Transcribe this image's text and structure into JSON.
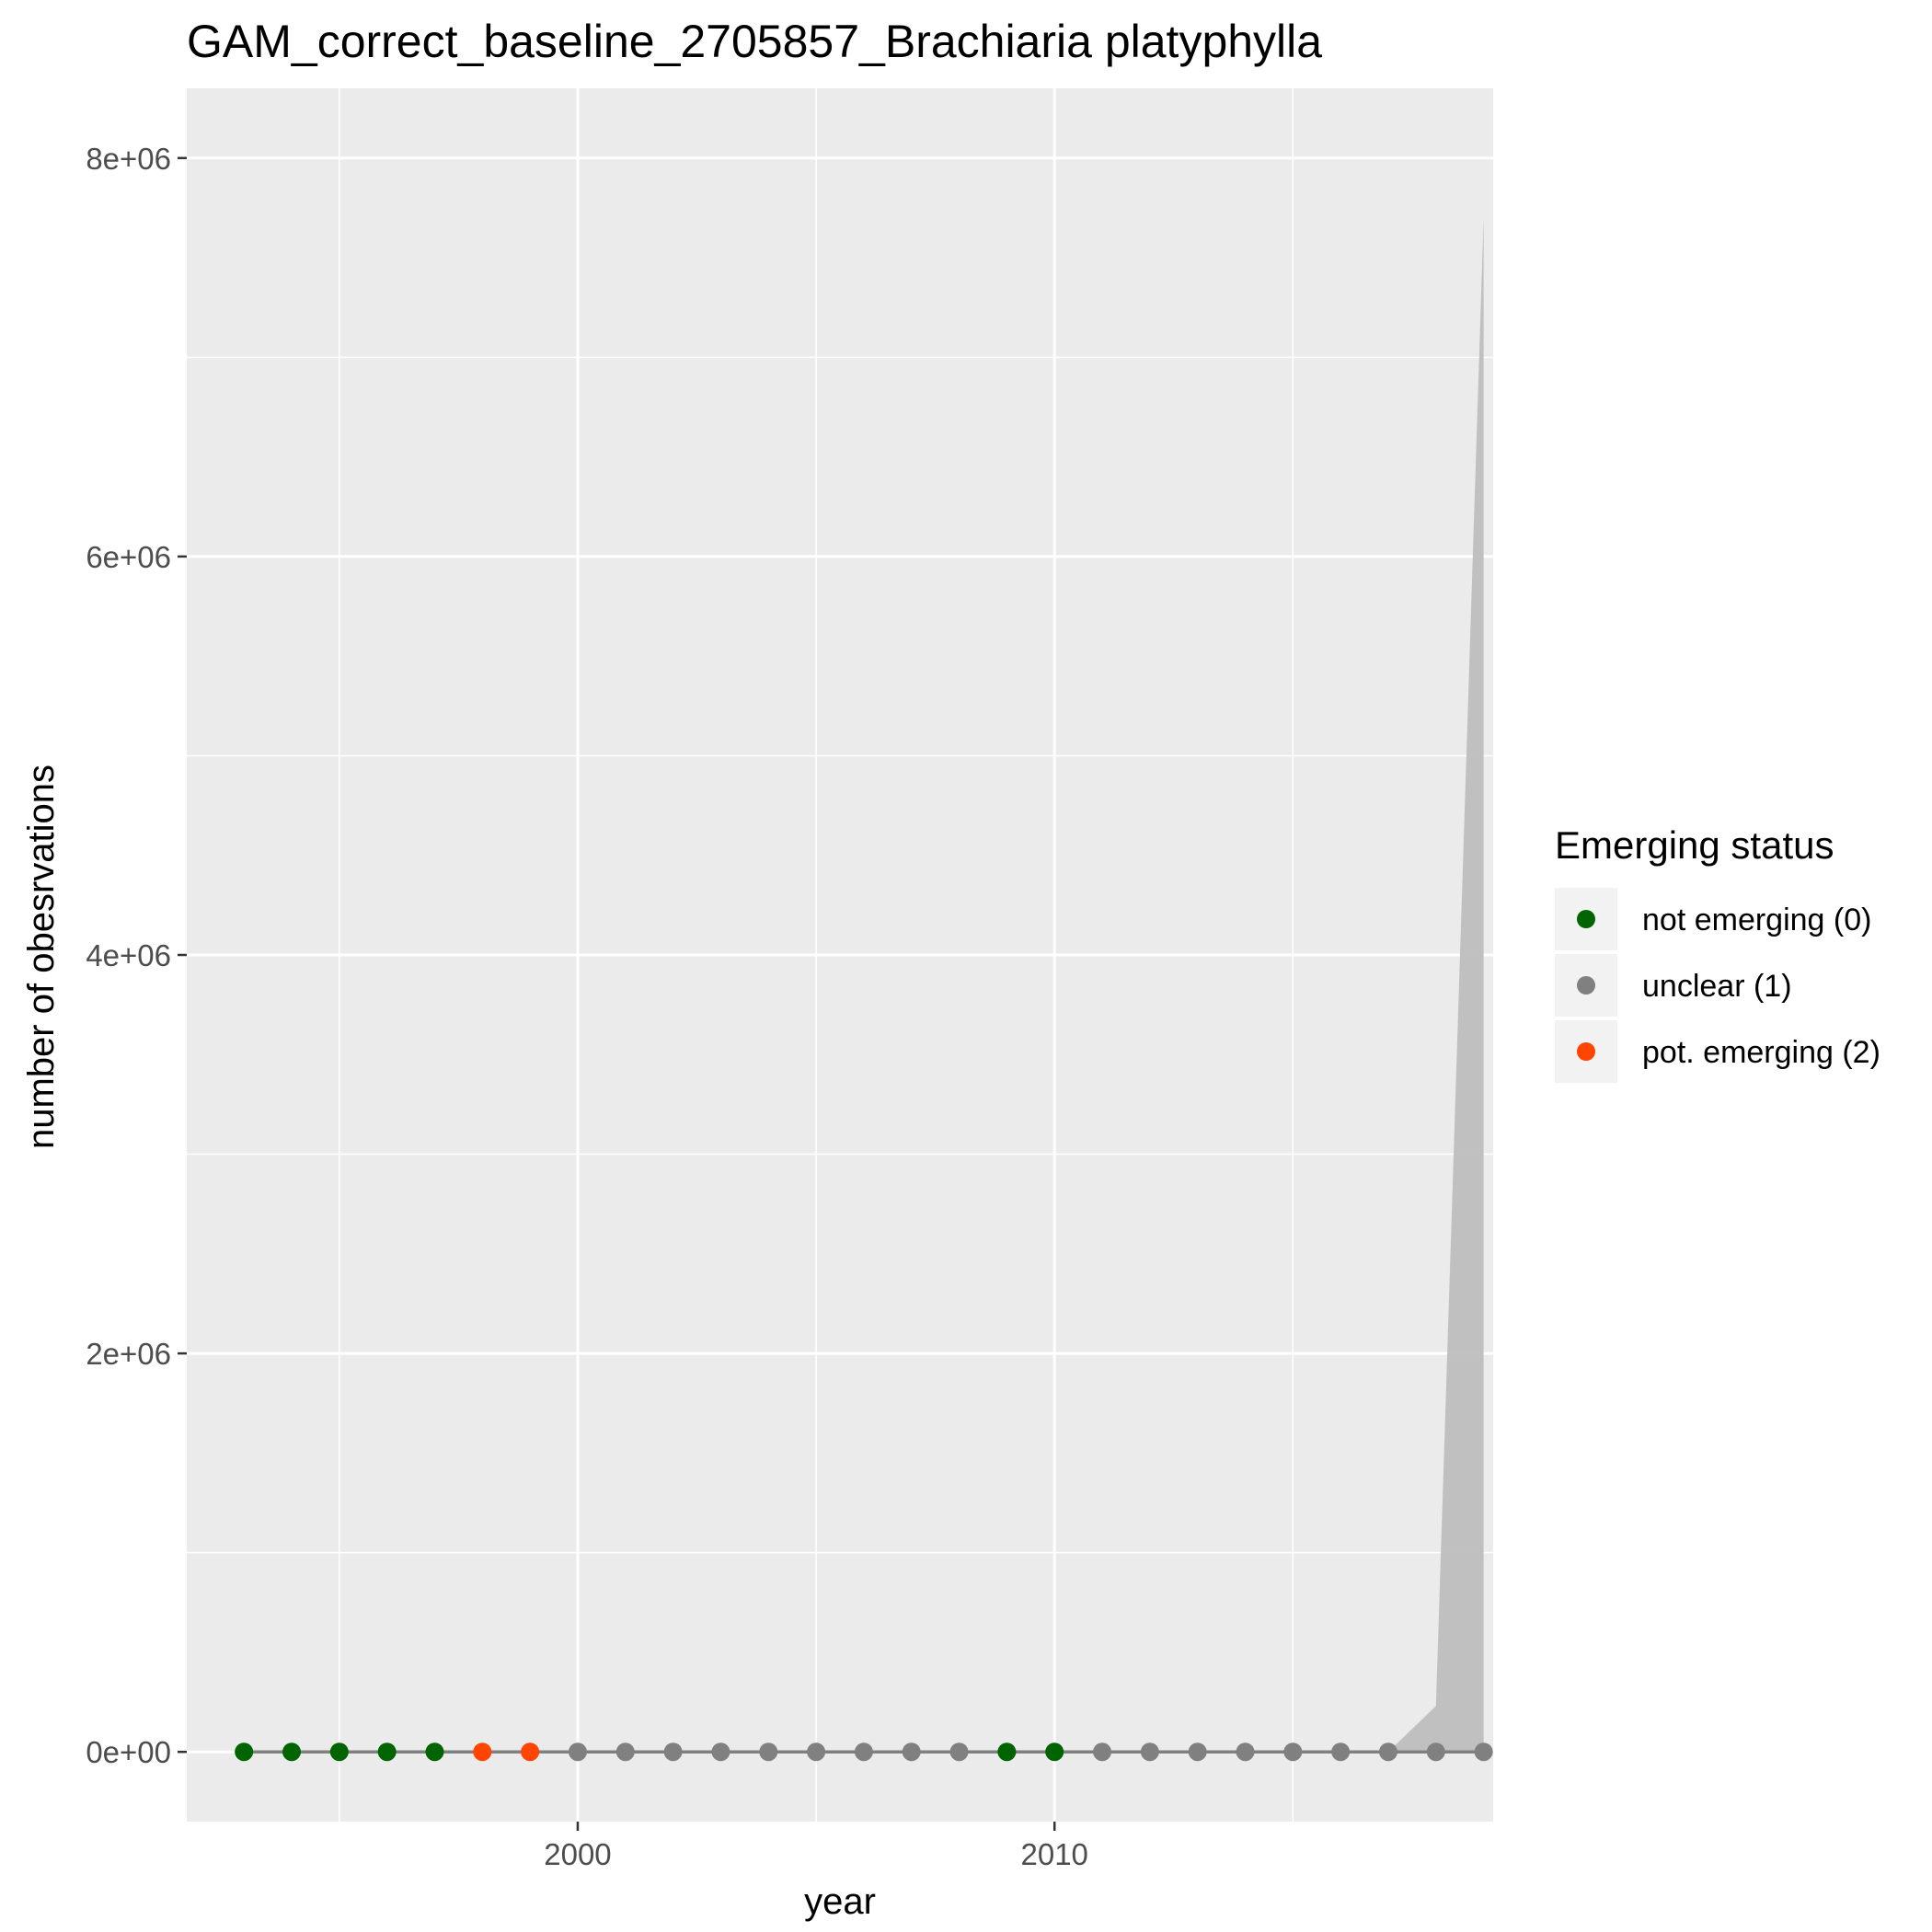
{
  "chart_data": {
    "type": "line",
    "title": "GAM_correct_baseline_2705857_Brachiaria platyphylla",
    "xlabel": "year",
    "ylabel": "number of obesrvations",
    "xlim": [
      1991.8,
      2019.2
    ],
    "ylim": [
      -350000,
      8350000
    ],
    "x_ticks": [
      2000,
      2010
    ],
    "x_tick_labels": [
      "2000",
      "2010"
    ],
    "y_ticks": [
      0,
      2000000,
      4000000,
      6000000,
      8000000
    ],
    "y_tick_labels": [
      "0e+00",
      "2e+06",
      "4e+06",
      "6e+06",
      "8e+06"
    ],
    "grid": true,
    "legend_position": "right",
    "legend": {
      "title": "Emerging status",
      "entries": [
        {
          "label": "not emerging (0)",
          "color": "#006400",
          "status": 0
        },
        {
          "label": "unclear (1)",
          "color": "#808080",
          "status": 1
        },
        {
          "label": "pot. emerging (2)",
          "color": "#FF4500",
          "status": 2
        }
      ]
    },
    "colors": {
      "panel_bg": "#EBEBEB",
      "grid": "#FFFFFF",
      "line": "#808080",
      "ribbon": "#BEBEBE",
      "axis_text": "#4D4D4D"
    },
    "series": [
      {
        "x": [
          1993,
          1994,
          1995,
          1996,
          1997,
          1998,
          1999,
          2000,
          2001,
          2002,
          2003,
          2004,
          2005,
          2006,
          2007,
          2008,
          2009,
          2010,
          2011,
          2012,
          2013,
          2014,
          2015,
          2016,
          2017,
          2018,
          2019
        ],
        "y": [
          0,
          0,
          0,
          0,
          0,
          0,
          0,
          0,
          0,
          0,
          0,
          0,
          0,
          0,
          0,
          0,
          0,
          0,
          0,
          0,
          0,
          0,
          0,
          0,
          0,
          0,
          0
        ],
        "status": [
          0,
          0,
          0,
          0,
          0,
          2,
          2,
          1,
          1,
          1,
          1,
          1,
          1,
          1,
          1,
          1,
          0,
          0,
          1,
          1,
          1,
          1,
          1,
          1,
          1,
          1,
          1
        ]
      }
    ],
    "ribbon": {
      "x": [
        2017,
        2018,
        2019
      ],
      "lower": [
        0,
        0,
        0
      ],
      "upper": [
        0,
        230000,
        7700000
      ]
    }
  }
}
